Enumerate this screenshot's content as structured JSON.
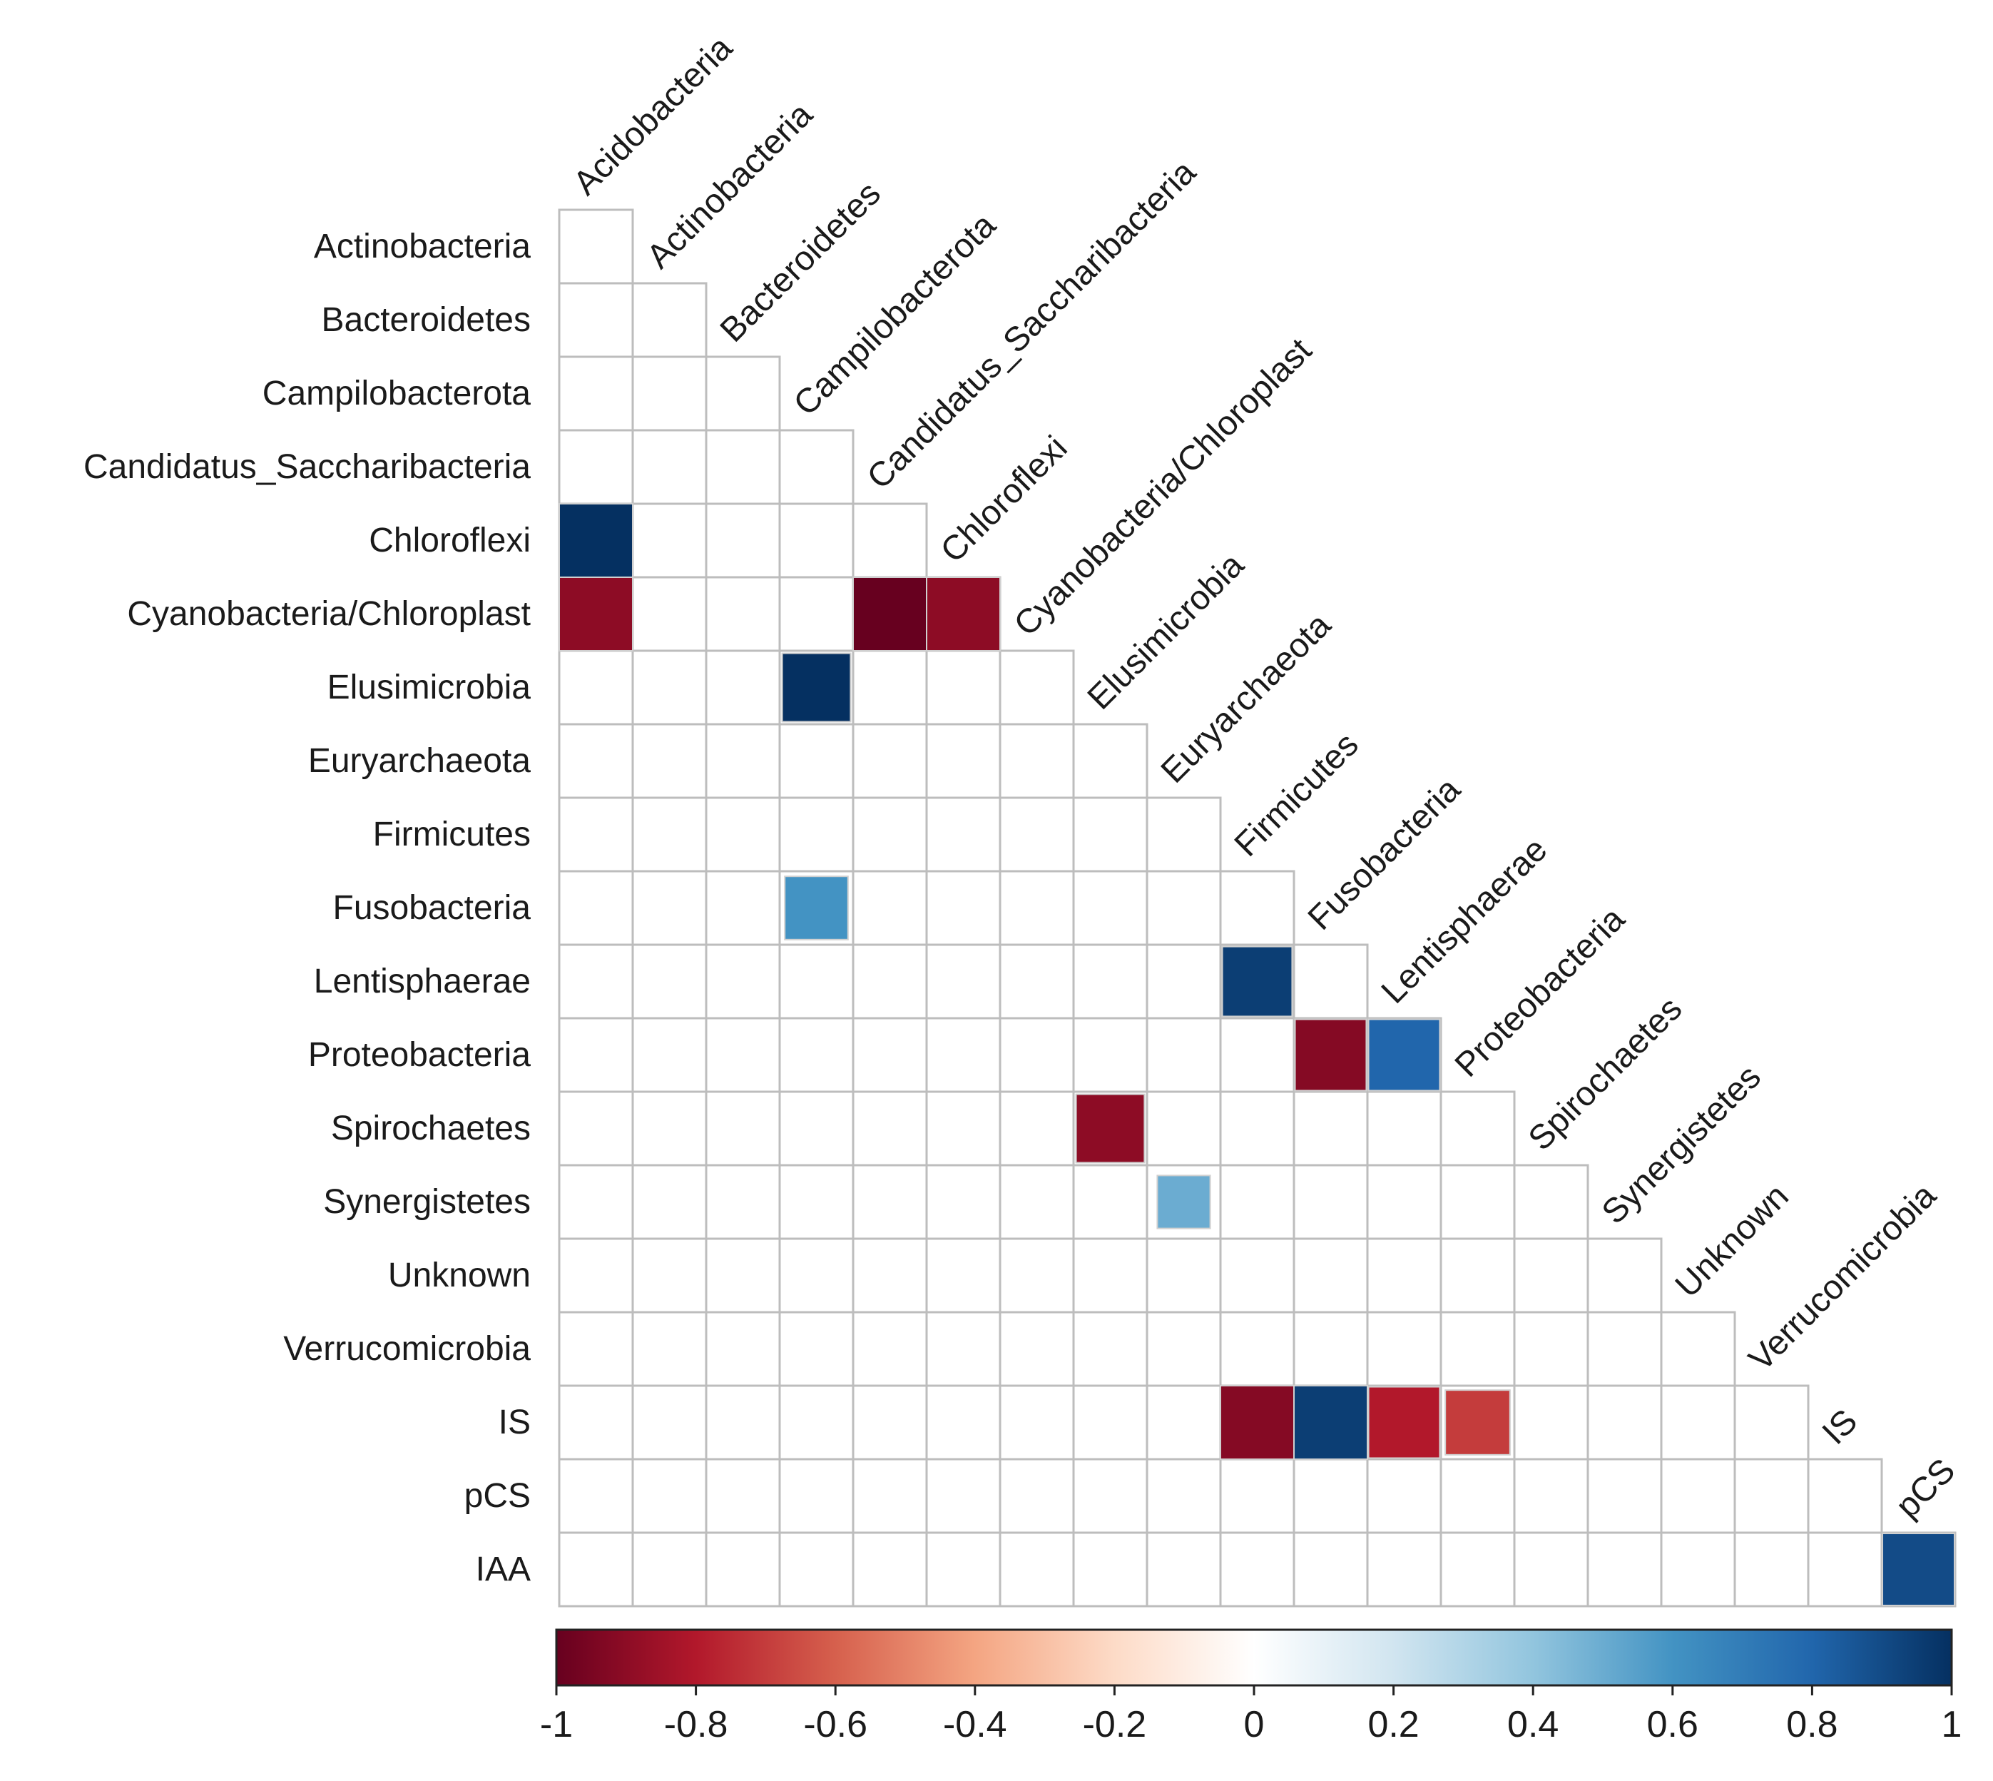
{
  "chart_data": {
    "type": "heatmap",
    "title": "",
    "layout": "lower-triangular correlation matrix",
    "column_labels": [
      "Acidobacteria",
      "Actinobacteria",
      "Bacteroidetes",
      "Campilobacterota",
      "Candidatus_Saccharibacteria",
      "Chloroflexi",
      "Cyanobacteria/Chloroplast",
      "Elusimicrobia",
      "Euryarchaeota",
      "Firmicutes",
      "Fusobacteria",
      "Lentisphaerae",
      "Proteobacteria",
      "Spirochaetes",
      "Synergistetes",
      "Unknown",
      "Verrucomicrobia",
      "IS",
      "pCS"
    ],
    "row_labels": [
      "Actinobacteria",
      "Bacteroidetes",
      "Campilobacterota",
      "Candidatus_Saccharibacteria",
      "Chloroflexi",
      "Cyanobacteria/Chloroplast",
      "Elusimicrobia",
      "Euryarchaeota",
      "Firmicutes",
      "Fusobacteria",
      "Lentisphaerae",
      "Proteobacteria",
      "Spirochaetes",
      "Synergistetes",
      "Unknown",
      "Verrucomicrobia",
      "IS",
      "pCS",
      "IAA"
    ],
    "significant_cells": [
      {
        "row": "Chloroflexi",
        "col": "Acidobacteria",
        "value": 1.0,
        "size": 1.0
      },
      {
        "row": "Cyanobacteria/Chloroplast",
        "col": "Acidobacteria",
        "value": -0.9,
        "size": 1.0
      },
      {
        "row": "Cyanobacteria/Chloroplast",
        "col": "Candidatus_Saccharibacteria",
        "value": -1.0,
        "size": 1.0
      },
      {
        "row": "Cyanobacteria/Chloroplast",
        "col": "Chloroflexi",
        "value": -0.9,
        "size": 1.0
      },
      {
        "row": "Elusimicrobia",
        "col": "Campilobacterota",
        "value": 1.0,
        "size": 0.93
      },
      {
        "row": "Fusobacteria",
        "col": "Campilobacterota",
        "value": 0.6,
        "size": 0.86
      },
      {
        "row": "Lentisphaerae",
        "col": "Firmicutes",
        "value": 0.95,
        "size": 0.95
      },
      {
        "row": "Proteobacteria",
        "col": "Fusobacteria",
        "value": -0.92,
        "size": 0.97
      },
      {
        "row": "Proteobacteria",
        "col": "Lentisphaerae",
        "value": 0.8,
        "size": 0.97
      },
      {
        "row": "Spirochaetes",
        "col": "Elusimicrobia",
        "value": -0.9,
        "size": 0.93
      },
      {
        "row": "Synergistetes",
        "col": "Euryarchaeota",
        "value": 0.5,
        "size": 0.72
      },
      {
        "row": "IS",
        "col": "Firmicutes",
        "value": -0.92,
        "size": 1.0
      },
      {
        "row": "IS",
        "col": "Fusobacteria",
        "value": 0.95,
        "size": 1.0
      },
      {
        "row": "IS",
        "col": "Lentisphaerae",
        "value": -0.8,
        "size": 0.97
      },
      {
        "row": "IS",
        "col": "Proteobacteria",
        "value": -0.7,
        "size": 0.88
      },
      {
        "row": "IAA",
        "col": "pCS",
        "value": 0.9,
        "size": 0.98
      }
    ],
    "colorbar": {
      "range": [
        -1,
        1
      ],
      "ticks": [
        -1,
        -0.8,
        -0.6,
        -0.4,
        -0.2,
        0,
        0.2,
        0.4,
        0.6,
        0.8,
        1
      ],
      "tick_labels": [
        "-1",
        "-0.8",
        "-0.6",
        "-0.4",
        "-0.2",
        "0",
        "0.2",
        "0.4",
        "0.6",
        "0.8",
        "1"
      ],
      "colors": [
        "#67001f",
        "#b2182b",
        "#d6604d",
        "#f4a582",
        "#fddbc7",
        "#ffffff",
        "#d1e5f0",
        "#92c5de",
        "#4393c3",
        "#2166ac",
        "#053061"
      ]
    }
  }
}
